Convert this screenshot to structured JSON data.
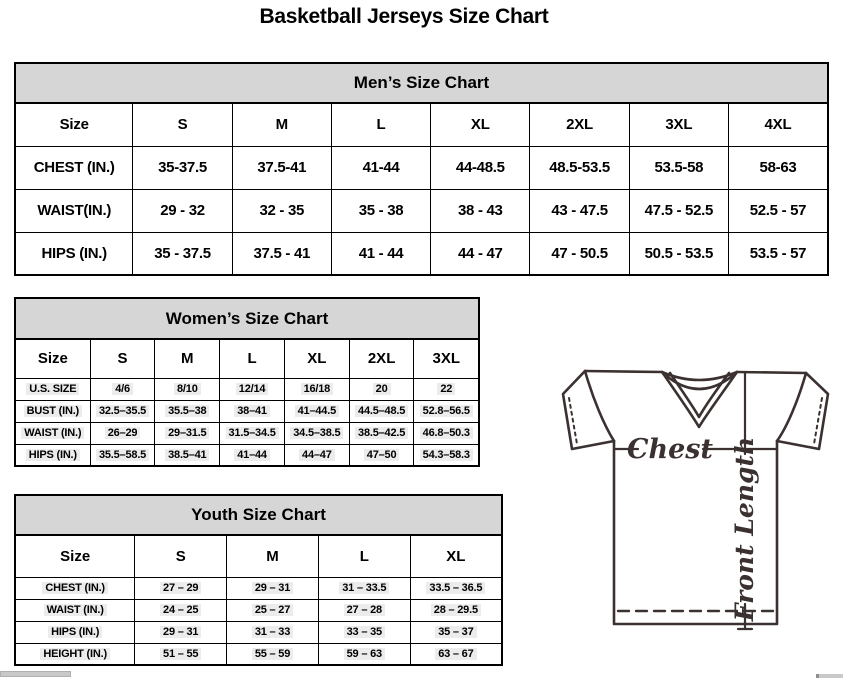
{
  "page": {
    "title": "Basketball Jerseys Size Chart"
  },
  "tables": {
    "men": {
      "caption": "Men’s Size Chart",
      "size_label": "Size",
      "sizes": [
        "S",
        "M",
        "L",
        "XL",
        "2XL",
        "3XL",
        "4XL"
      ],
      "rows": [
        {
          "label": "CHEST (IN.)",
          "values": [
            "35-37.5",
            "37.5-41",
            "41-44",
            "44-48.5",
            "48.5-53.5",
            "53.5-58",
            "58-63"
          ]
        },
        {
          "label": "WAIST(IN.)",
          "values": [
            "29 - 32",
            "32 - 35",
            "35 - 38",
            "38 - 43",
            "43 - 47.5",
            "47.5 - 52.5",
            "52.5 - 57"
          ]
        },
        {
          "label": "HIPS (IN.)",
          "values": [
            "35 - 37.5",
            "37.5 - 41",
            "41 - 44",
            "44 - 47",
            "47 - 50.5",
            "50.5 - 53.5",
            "53.5 - 57"
          ]
        }
      ]
    },
    "women": {
      "caption": "Women’s Size Chart",
      "size_label": "Size",
      "sizes": [
        "S",
        "M",
        "L",
        "XL",
        "2XL",
        "3XL"
      ],
      "rows": [
        {
          "label": "U.S. SIZE",
          "values": [
            "4/6",
            "8/10",
            "12/14",
            "16/18",
            "20",
            "22"
          ]
        },
        {
          "label": "BUST (IN.)",
          "values": [
            "32.5–35.5",
            "35.5–38",
            "38–41",
            "41–44.5",
            "44.5–48.5",
            "52.8–56.5"
          ]
        },
        {
          "label": "WAIST (IN.)",
          "values": [
            "26–29",
            "29–31.5",
            "31.5–34.5",
            "34.5–38.5",
            "38.5–42.5",
            "46.8–50.3"
          ]
        },
        {
          "label": "HIPS (IN.)",
          "values": [
            "35.5–58.5",
            "38.5–41",
            "41–44",
            "44–47",
            "47–50",
            "54.3–58.3"
          ]
        }
      ]
    },
    "youth": {
      "caption": "Youth Size Chart",
      "size_label": "Size",
      "sizes": [
        "S",
        "M",
        "L",
        "XL"
      ],
      "rows": [
        {
          "label": "CHEST (IN.)",
          "values": [
            "27 – 29",
            "29 – 31",
            "31 – 33.5",
            "33.5 – 36.5"
          ]
        },
        {
          "label": "WAIST (IN.)",
          "values": [
            "24 – 25",
            "25 – 27",
            "27 – 28",
            "28 – 29.5"
          ]
        },
        {
          "label": "HIPS (IN.)",
          "values": [
            "29 – 31",
            "31 – 33",
            "33 – 35",
            "35 – 37"
          ]
        },
        {
          "label": "HEIGHT (IN.)",
          "values": [
            "51 – 55",
            "55 – 59",
            "59 – 63",
            "63 – 67"
          ]
        }
      ]
    }
  },
  "diagram": {
    "chest_label": "Chest",
    "front_length_label": "Front Length"
  },
  "colors": {
    "band_bg": "#d6d6d6",
    "table_border": "#000000",
    "diagram_stroke": "#3a3130",
    "value_highlight": "#ececec",
    "scrollbar": "#c9c9c9"
  }
}
